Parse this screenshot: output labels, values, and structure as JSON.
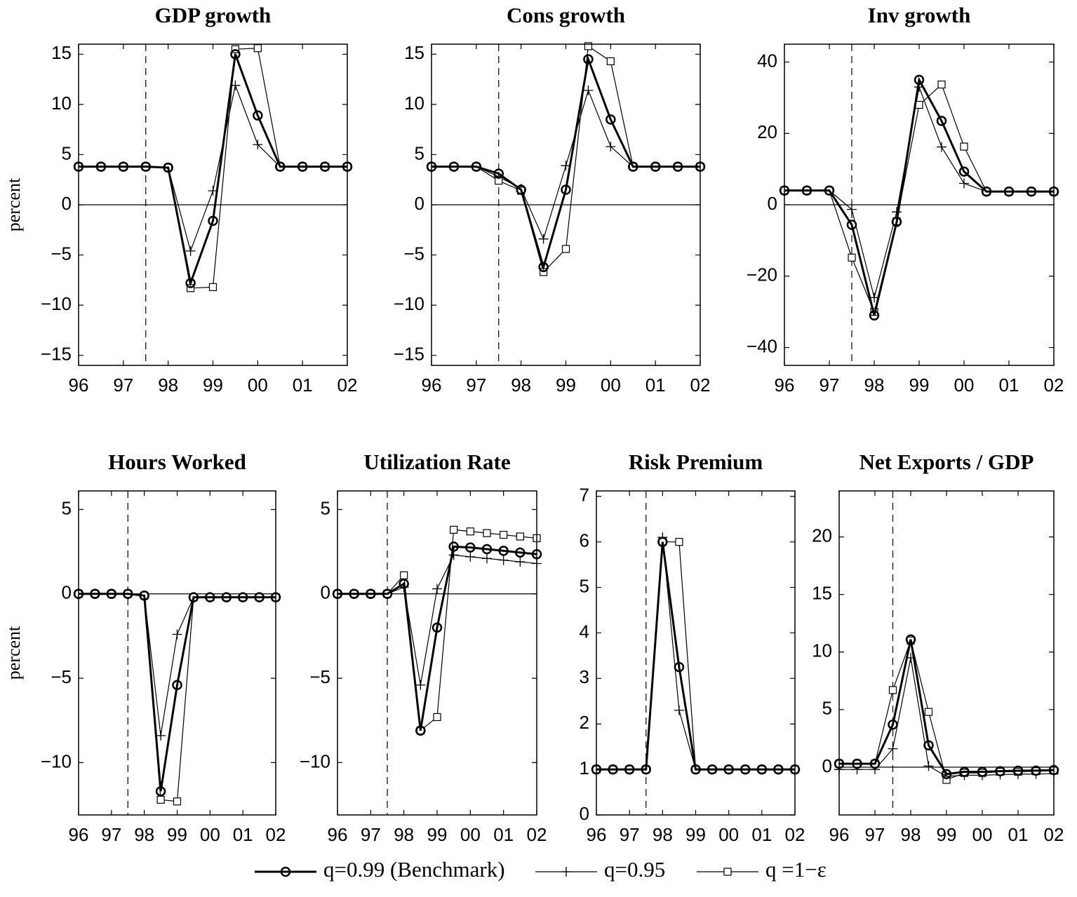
{
  "chart_data": [
    {
      "type": "line",
      "title": "GDP growth",
      "ylabel": "percent",
      "x": [
        1996,
        1996.5,
        1997,
        1997.5,
        1998,
        1998.5,
        1999,
        1999.5,
        2000,
        2000.5,
        2001,
        2001.5,
        2002
      ],
      "xlim": [
        1996,
        2002
      ],
      "xticks": [
        {
          "value": 1996,
          "label": "96"
        },
        {
          "value": 1997,
          "label": "97"
        },
        {
          "value": 1998,
          "label": "98"
        },
        {
          "value": 1999,
          "label": "99"
        },
        {
          "value": 2000,
          "label": "00"
        },
        {
          "value": 2001,
          "label": "01"
        },
        {
          "value": 2002,
          "label": "02"
        }
      ],
      "ylim": [
        -16,
        16
      ],
      "yticks": [
        {
          "value": -15,
          "label": "−15"
        },
        {
          "value": -10,
          "label": "−10"
        },
        {
          "value": -5,
          "label": "−5"
        },
        0,
        5,
        10,
        15
      ],
      "vline": 1997.5,
      "hline": 0,
      "series": [
        {
          "marker": "circle",
          "width": 3,
          "color": "#000",
          "values": [
            3.8,
            3.8,
            3.8,
            3.8,
            3.7,
            -7.8,
            -1.6,
            15,
            8.9,
            3.8,
            3.8,
            3.8,
            3.8
          ]
        },
        {
          "marker": "plus",
          "width": 1.2,
          "color": "#000",
          "values": [
            3.8,
            3.8,
            3.8,
            3.8,
            3.7,
            -4.6,
            1.4,
            11.9,
            6.0,
            3.8,
            3.8,
            3.8,
            3.8
          ]
        },
        {
          "marker": "square",
          "width": 1.2,
          "color": "#000",
          "values": [
            3.8,
            3.8,
            3.8,
            3.8,
            3.7,
            -8.3,
            -8.2,
            15.5,
            15.6,
            3.8,
            3.8,
            3.8,
            3.8
          ]
        }
      ]
    },
    {
      "type": "line",
      "title": "Cons growth",
      "x": [
        1996,
        1996.5,
        1997,
        1997.5,
        1998,
        1998.5,
        1999,
        1999.5,
        2000,
        2000.5,
        2001,
        2001.5,
        2002
      ],
      "xlim": [
        1996,
        2002
      ],
      "xticks": [
        {
          "value": 1996,
          "label": "96"
        },
        {
          "value": 1997,
          "label": "97"
        },
        {
          "value": 1998,
          "label": "98"
        },
        {
          "value": 1999,
          "label": "99"
        },
        {
          "value": 2000,
          "label": "00"
        },
        {
          "value": 2001,
          "label": "01"
        },
        {
          "value": 2002,
          "label": "02"
        }
      ],
      "ylim": [
        -16,
        16
      ],
      "yticks": [
        {
          "value": -15,
          "label": "−15"
        },
        {
          "value": -10,
          "label": "−10"
        },
        {
          "value": -5,
          "label": "−5"
        },
        0,
        5,
        10,
        15
      ],
      "vline": 1997.5,
      "hline": 0,
      "series": [
        {
          "marker": "circle",
          "width": 3,
          "color": "#000",
          "values": [
            3.8,
            3.8,
            3.8,
            3.1,
            1.5,
            -6.2,
            1.5,
            14.5,
            8.5,
            3.8,
            3.8,
            3.8,
            3.8
          ]
        },
        {
          "marker": "plus",
          "width": 1.2,
          "color": "#000",
          "values": [
            3.8,
            3.8,
            3.8,
            2.8,
            1.6,
            -3.4,
            3.9,
            11.4,
            5.8,
            3.8,
            3.8,
            3.8,
            3.8
          ]
        },
        {
          "marker": "square",
          "width": 1.2,
          "color": "#000",
          "values": [
            3.8,
            3.8,
            3.8,
            2.4,
            1.4,
            -6.7,
            -4.4,
            15.8,
            14.3,
            3.8,
            3.8,
            3.8,
            3.8
          ]
        }
      ]
    },
    {
      "type": "line",
      "title": "Inv growth",
      "x": [
        1996,
        1996.5,
        1997,
        1997.5,
        1998,
        1998.5,
        1999,
        1999.5,
        2000,
        2000.5,
        2001,
        2001.5,
        2002
      ],
      "xlim": [
        1996,
        2002
      ],
      "xticks": [
        {
          "value": 1996,
          "label": "96"
        },
        {
          "value": 1997,
          "label": "97"
        },
        {
          "value": 1998,
          "label": "98"
        },
        {
          "value": 1999,
          "label": "99"
        },
        {
          "value": 2000,
          "label": "00"
        },
        {
          "value": 2001,
          "label": "01"
        },
        {
          "value": 2002,
          "label": "02"
        }
      ],
      "ylim": [
        -45,
        45
      ],
      "yticks": [
        {
          "value": -40,
          "label": "−40"
        },
        {
          "value": -20,
          "label": "−20"
        },
        0,
        20,
        40
      ],
      "vline": 1997.5,
      "hline": 0,
      "series": [
        {
          "marker": "circle",
          "width": 3,
          "color": "#000",
          "values": [
            4,
            4,
            4,
            -5.6,
            -31,
            -4.8,
            35,
            23.5,
            9.3,
            3.7,
            3.7,
            3.7,
            3.7
          ]
        },
        {
          "marker": "plus",
          "width": 1.2,
          "color": "#000",
          "values": [
            4,
            4,
            4,
            -1.3,
            -26,
            -2,
            33,
            16.2,
            6,
            3.7,
            3.7,
            3.7,
            3.7
          ]
        },
        {
          "marker": "square",
          "width": 1.2,
          "color": "#000",
          "values": [
            4,
            4,
            4,
            -14.8,
            -30,
            -4.6,
            28,
            33.7,
            16.3,
            3.7,
            3.7,
            3.7,
            3.7
          ]
        }
      ]
    },
    {
      "type": "line",
      "title": "Hours Worked",
      "ylabel": "percent",
      "x": [
        1996,
        1996.5,
        1997,
        1997.5,
        1998,
        1998.5,
        1999,
        1999.5,
        2000,
        2000.5,
        2001,
        2001.5,
        2002
      ],
      "xlim": [
        1996,
        2002
      ],
      "xticks": [
        {
          "value": 1996,
          "label": "96"
        },
        {
          "value": 1997,
          "label": "97"
        },
        {
          "value": 1998,
          "label": "98"
        },
        {
          "value": 1999,
          "label": "99"
        },
        {
          "value": 2000,
          "label": "00"
        },
        {
          "value": 2001,
          "label": "01"
        },
        {
          "value": 2002,
          "label": "02"
        }
      ],
      "ylim": [
        -13.1,
        6.1
      ],
      "yticks": [
        {
          "value": -10,
          "label": "−10"
        },
        {
          "value": -5,
          "label": "−5"
        },
        0,
        5
      ],
      "vline": 1997.5,
      "hline": 0,
      "series": [
        {
          "marker": "circle",
          "width": 3,
          "color": "#000",
          "values": [
            0,
            0,
            0,
            0,
            -0.1,
            -11.7,
            -5.4,
            -0.2,
            -0.2,
            -0.2,
            -0.2,
            -0.2,
            -0.2
          ]
        },
        {
          "marker": "plus",
          "width": 1.2,
          "color": "#000",
          "values": [
            0,
            0,
            0,
            0,
            -0.1,
            -8.4,
            -2.4,
            -0.2,
            -0.2,
            -0.2,
            -0.2,
            -0.2,
            -0.2
          ]
        },
        {
          "marker": "square",
          "width": 1.2,
          "color": "#000",
          "values": [
            0,
            0,
            0,
            0,
            -0.1,
            -12.2,
            -12.3,
            -0.2,
            -0.2,
            -0.2,
            -0.2,
            -0.2,
            -0.2
          ]
        }
      ]
    },
    {
      "type": "line",
      "title": "Utilization Rate",
      "x": [
        1996,
        1996.5,
        1997,
        1997.5,
        1998,
        1998.5,
        1999,
        1999.5,
        2000,
        2000.5,
        2001,
        2001.5,
        2002
      ],
      "xlim": [
        1996,
        2002
      ],
      "xticks": [
        {
          "value": 1996,
          "label": "96"
        },
        {
          "value": 1997,
          "label": "97"
        },
        {
          "value": 1998,
          "label": "98"
        },
        {
          "value": 1999,
          "label": "99"
        },
        {
          "value": 2000,
          "label": "00"
        },
        {
          "value": 2001,
          "label": "01"
        },
        {
          "value": 2002,
          "label": "02"
        }
      ],
      "ylim": [
        -13.1,
        6.1
      ],
      "yticks": [
        {
          "value": -10,
          "label": "−10"
        },
        {
          "value": -5,
          "label": "−5"
        },
        0,
        5
      ],
      "vline": 1997.5,
      "hline": 0,
      "series": [
        {
          "marker": "circle",
          "width": 3,
          "color": "#000",
          "values": [
            0,
            0,
            0,
            0,
            0.6,
            -8.1,
            -2,
            2.8,
            2.75,
            2.65,
            2.55,
            2.45,
            2.35
          ]
        },
        {
          "marker": "plus",
          "width": 1.2,
          "color": "#000",
          "values": [
            0,
            0,
            0,
            0,
            0.4,
            -5.4,
            0.3,
            2.3,
            2.2,
            2.1,
            2.0,
            1.9,
            1.8
          ]
        },
        {
          "marker": "square",
          "width": 1.2,
          "color": "#000",
          "values": [
            0,
            0,
            0,
            0,
            1.1,
            -8.1,
            -7.3,
            3.8,
            3.7,
            3.6,
            3.5,
            3.4,
            3.3
          ]
        }
      ]
    },
    {
      "type": "line",
      "title": "Risk Premium",
      "x": [
        1996,
        1996.5,
        1997,
        1997.5,
        1998,
        1998.5,
        1999,
        1999.5,
        2000,
        2000.5,
        2001,
        2001.5,
        2002
      ],
      "xlim": [
        1996,
        2002
      ],
      "xticks": [
        {
          "value": 1996,
          "label": "96"
        },
        {
          "value": 1997,
          "label": "97"
        },
        {
          "value": 1998,
          "label": "98"
        },
        {
          "value": 1999,
          "label": "99"
        },
        {
          "value": 2000,
          "label": "00"
        },
        {
          "value": 2001,
          "label": "01"
        },
        {
          "value": 2002,
          "label": "02"
        }
      ],
      "ylim": [
        0,
        7.12
      ],
      "yticks": [
        0,
        1,
        2,
        3,
        4,
        5,
        6,
        7
      ],
      "vline": 1997.5,
      "series": [
        {
          "marker": "circle",
          "width": 3,
          "color": "#000",
          "values": [
            1,
            1,
            1,
            1,
            6,
            3.25,
            1,
            1,
            1,
            1,
            1,
            1,
            1
          ]
        },
        {
          "marker": "plus",
          "width": 1.2,
          "color": "#000",
          "values": [
            1,
            1,
            1,
            1,
            6.1,
            2.3,
            1,
            1,
            1,
            1,
            1,
            1,
            1
          ]
        },
        {
          "marker": "square",
          "width": 1.2,
          "color": "#000",
          "values": [
            1,
            1,
            1,
            1,
            6,
            6,
            1,
            1,
            1,
            1,
            1,
            1,
            1
          ]
        }
      ]
    },
    {
      "type": "line",
      "title": "Net Exports / GDP",
      "x": [
        1996,
        1996.5,
        1997,
        1997.5,
        1998,
        1998.5,
        1999,
        1999.5,
        2000,
        2000.5,
        2001,
        2001.5,
        2002
      ],
      "xlim": [
        1996,
        2002
      ],
      "xticks": [
        {
          "value": 1996,
          "label": "96"
        },
        {
          "value": 1997,
          "label": "97"
        },
        {
          "value": 1998,
          "label": "98"
        },
        {
          "value": 1999,
          "label": "99"
        },
        {
          "value": 2000,
          "label": "00"
        },
        {
          "value": 2001,
          "label": "01"
        },
        {
          "value": 2002,
          "label": "02"
        }
      ],
      "ylim": [
        -4.15,
        24
      ],
      "yticks": [
        0,
        5,
        10,
        15,
        20
      ],
      "vline": 1997.5,
      "hline": 0,
      "series": [
        {
          "marker": "circle",
          "width": 3,
          "color": "#000",
          "values": [
            0.3,
            0.3,
            0.3,
            3.7,
            11.1,
            1.9,
            -0.6,
            -0.4,
            -0.4,
            -0.35,
            -0.3,
            -0.3,
            -0.25
          ]
        },
        {
          "marker": "plus",
          "width": 1.2,
          "color": "#000",
          "values": [
            -0.2,
            -0.2,
            -0.2,
            1.6,
            9.5,
            0.1,
            -0.8,
            -0.7,
            -0.7,
            -0.65,
            -0.6,
            -0.6,
            -0.55
          ]
        },
        {
          "marker": "square",
          "width": 1.2,
          "color": "#000",
          "values": [
            0.3,
            0.3,
            0.3,
            6.7,
            11,
            4.8,
            -1.1,
            -0.5,
            -0.5,
            -0.4,
            -0.4,
            -0.35,
            -0.3
          ]
        }
      ]
    }
  ],
  "legend": [
    "q=0.99 (Benchmark)",
    "q=0.95",
    "q =1−ε"
  ]
}
